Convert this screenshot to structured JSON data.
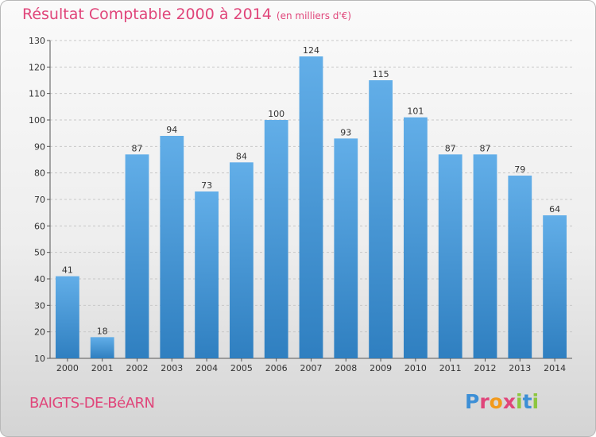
{
  "header": {
    "title": "Résultat Comptable 2000 à 2014",
    "unit": "(en milliers d'€)"
  },
  "footer": {
    "commune": "BAIGTS-DE-BéARN",
    "logo_letters": [
      "P",
      "r",
      "o",
      "x",
      "i",
      "t",
      "i"
    ]
  },
  "colors": {
    "accent": "#e0457a",
    "bar_top": "#62aee8",
    "bar_bottom": "#2f7fc0"
  },
  "chart_data": {
    "type": "bar",
    "categories": [
      "2000",
      "2001",
      "2002",
      "2003",
      "2004",
      "2005",
      "2006",
      "2007",
      "2008",
      "2009",
      "2010",
      "2011",
      "2012",
      "2013",
      "2014"
    ],
    "values": [
      41,
      18,
      87,
      94,
      73,
      84,
      100,
      124,
      93,
      115,
      101,
      87,
      87,
      79,
      64
    ],
    "ylim": [
      10,
      130
    ],
    "yticks": [
      10,
      20,
      30,
      40,
      50,
      60,
      70,
      80,
      90,
      100,
      110,
      120,
      130
    ],
    "grid": true,
    "data_labels": true
  }
}
